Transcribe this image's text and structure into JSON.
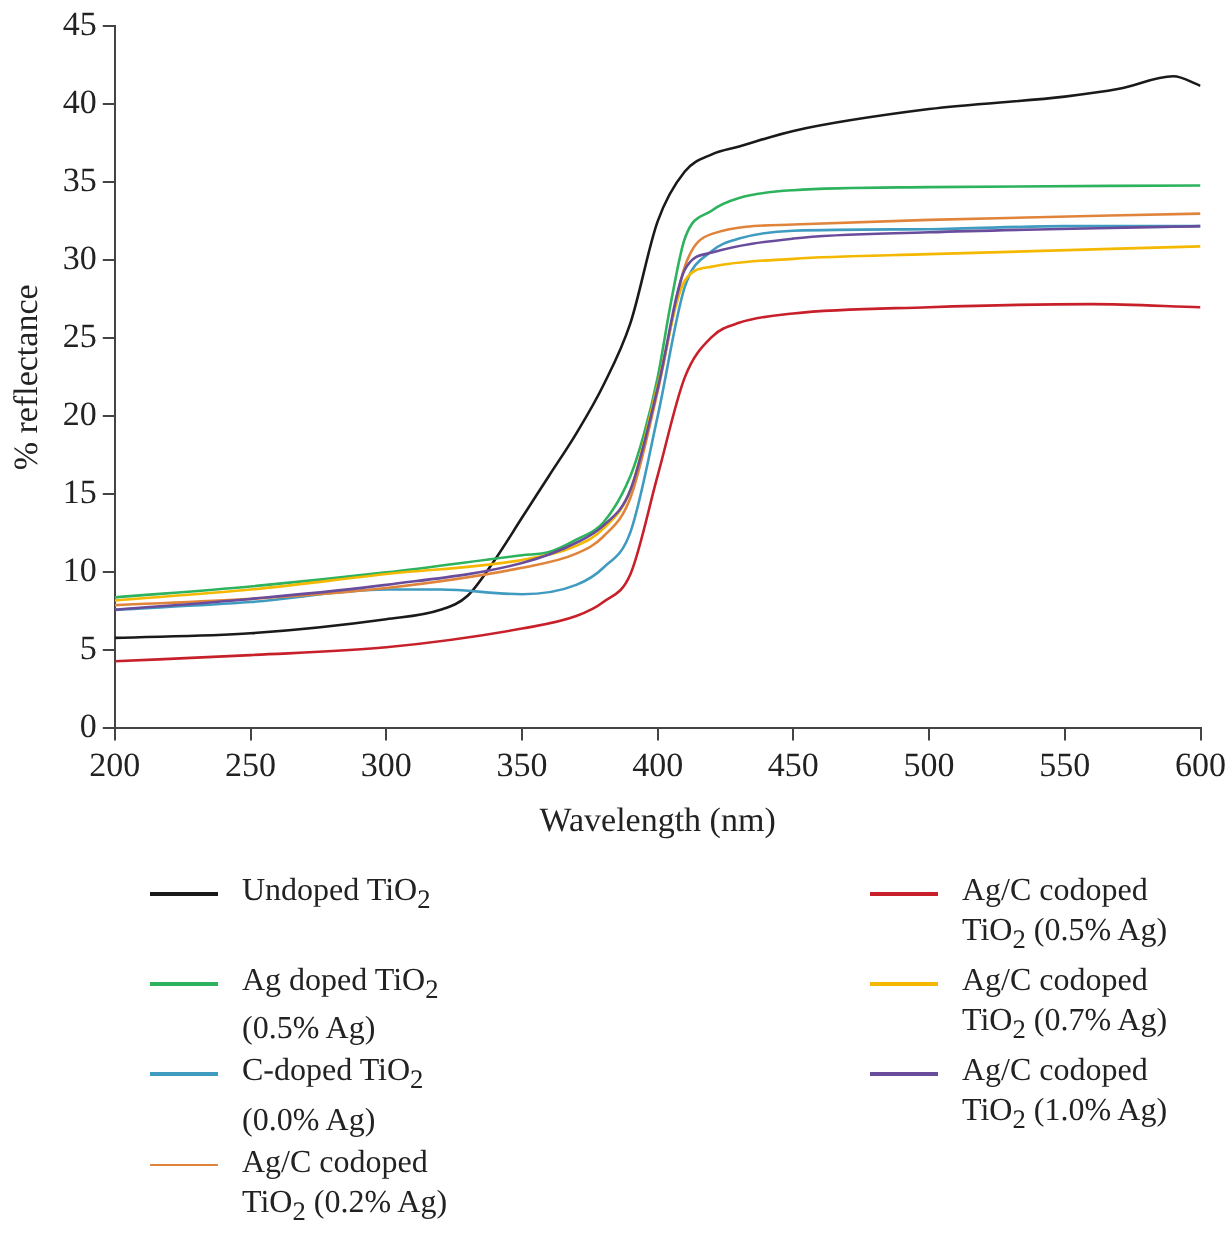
{
  "chart_data": {
    "type": "line",
    "xlabel": "Wavelength (nm)",
    "ylabel": "% reflectance",
    "xlim": [
      200,
      600
    ],
    "xticks": [
      200,
      250,
      300,
      350,
      400,
      450,
      500,
      550,
      600
    ],
    "ylim": [
      0,
      45
    ],
    "yticks": [
      0,
      5,
      10,
      15,
      20,
      25,
      30,
      35,
      40,
      45
    ],
    "grid": false,
    "legend": "bottom",
    "marker": "none",
    "line_style": "solid",
    "series": [
      {
        "name": "Undoped TiO$_{2}$",
        "color": "#1a1a1a",
        "x": [
          200,
          250,
          300,
          320,
          330,
          340,
          350,
          360,
          370,
          380,
          390,
          400,
          410,
          420,
          430,
          450,
          500,
          550,
          570,
          590,
          600
        ],
        "values": [
          5.8,
          6.1,
          7.0,
          7.6,
          8.5,
          10.8,
          13.5,
          16.2,
          18.9,
          22.0,
          26.0,
          32.5,
          35.7,
          36.8,
          37.3,
          38.3,
          39.7,
          40.5,
          41.0,
          41.8,
          41.2
        ]
      },
      {
        "name": "Ag doped TiO$_{2}$ (0.5% Ag)",
        "color": "#2db35d",
        "x": [
          200,
          250,
          300,
          350,
          360,
          370,
          380,
          390,
          395,
          400,
          405,
          410,
          420,
          430,
          450,
          500,
          600
        ],
        "values": [
          8.4,
          9.1,
          10.0,
          11.1,
          11.3,
          12.1,
          13.2,
          16.2,
          18.9,
          22.5,
          27.4,
          31.4,
          33.2,
          34.0,
          34.5,
          34.7,
          34.8
        ]
      },
      {
        "name": "C-doped TiO$_{2}$ (0.0% Ag)",
        "color": "#3f9bbf",
        "x": [
          200,
          250,
          300,
          320,
          350,
          370,
          380,
          390,
          400,
          410,
          420,
          430,
          450,
          500,
          550,
          600
        ],
        "values": [
          7.6,
          8.1,
          8.9,
          8.9,
          8.6,
          9.2,
          10.3,
          12.6,
          20.0,
          28.3,
          30.6,
          31.4,
          31.9,
          32.0,
          32.2,
          32.2
        ]
      },
      {
        "name": "Ag/C codoped TiO$_{2}$ (0.2% Ag)",
        "color": "#e0843c",
        "x": [
          200,
          250,
          300,
          350,
          370,
          380,
          390,
          400,
          410,
          420,
          450,
          500,
          600
        ],
        "values": [
          7.9,
          8.3,
          9.0,
          10.3,
          11.2,
          12.3,
          14.8,
          21.6,
          29.6,
          31.7,
          32.3,
          32.6,
          33.0
        ]
      },
      {
        "name": "Ag/C codoped TiO$_{2}$ (0.5% Ag)",
        "color": "#c8202a",
        "x": [
          200,
          250,
          300,
          350,
          370,
          380,
          390,
          400,
          410,
          420,
          430,
          450,
          500,
          560,
          600
        ],
        "values": [
          4.3,
          4.7,
          5.2,
          6.4,
          7.2,
          8.1,
          9.9,
          16.2,
          22.5,
          25.1,
          26.0,
          26.6,
          27.0,
          27.2,
          27.0
        ]
      },
      {
        "name": "Ag/C codoped TiO$_{2}$ (0.7% Ag)",
        "color": "#f5b800",
        "x": [
          200,
          250,
          300,
          350,
          370,
          380,
          390,
          400,
          410,
          420,
          450,
          500,
          600
        ],
        "values": [
          8.2,
          8.9,
          9.9,
          10.8,
          11.7,
          12.8,
          15.3,
          22.0,
          28.7,
          29.6,
          30.1,
          30.4,
          30.9
        ]
      },
      {
        "name": "Ag/C codoped TiO$_{2}$ (1.0% Ag)",
        "color": "#6a4c9c",
        "x": [
          200,
          250,
          300,
          350,
          370,
          380,
          390,
          400,
          410,
          420,
          450,
          500,
          600
        ],
        "values": [
          7.6,
          8.3,
          9.2,
          10.6,
          11.9,
          13.0,
          15.3,
          21.8,
          29.4,
          30.5,
          31.4,
          31.8,
          32.2
        ]
      }
    ]
  }
}
